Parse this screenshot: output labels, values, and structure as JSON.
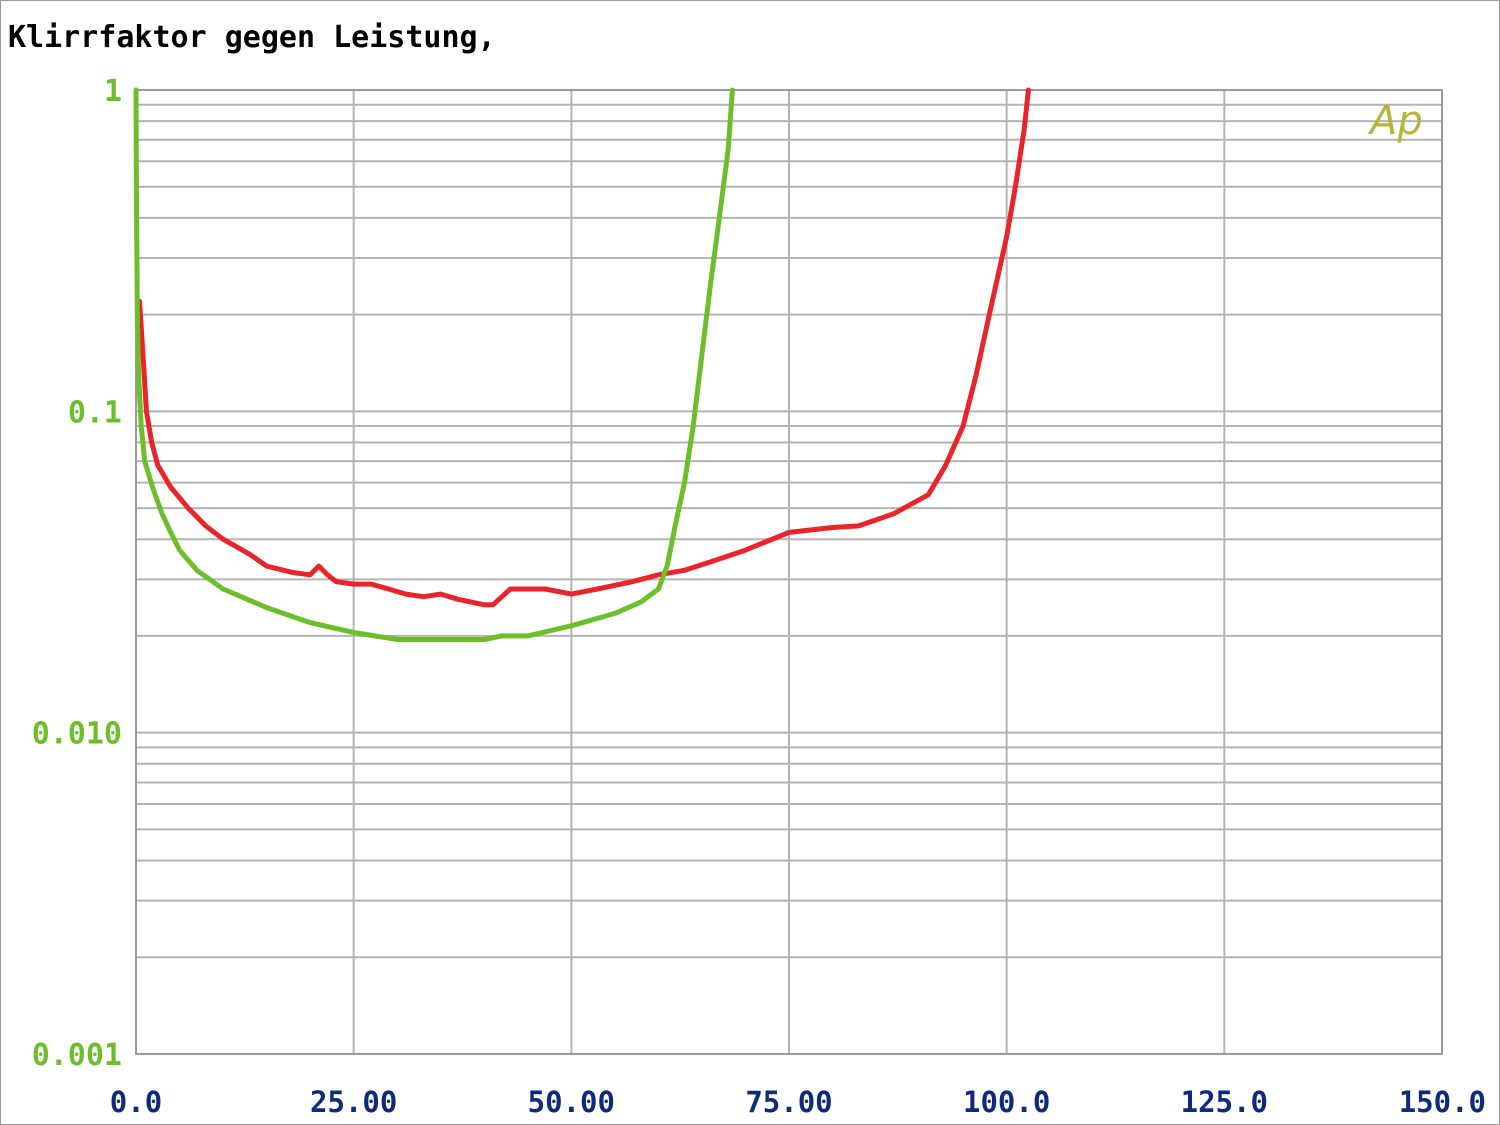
{
  "colors": {
    "background": "#ffffff",
    "grid": "#b4b4b4",
    "plot_border": "#9a9a9a",
    "tick_y": "#6cbf2a",
    "tick_x": "#0e2a7a",
    "logo": "#b8b63a"
  },
  "chart_data": {
    "type": "line",
    "title": "Klirrfaktor gegen Leistung,",
    "xlabel": "",
    "ylabel": "",
    "xlim": [
      0,
      150
    ],
    "ylim": [
      0.001,
      1
    ],
    "yscale": "log",
    "grid": true,
    "x_ticks": [
      "0.0",
      "25.00",
      "50.00",
      "75.00",
      "100.0",
      "125.0",
      "150.0"
    ],
    "x_tick_values": [
      0,
      25,
      50,
      75,
      100,
      125,
      150
    ],
    "y_ticks": [
      "1",
      "0.1",
      "0.010",
      "0.001"
    ],
    "y_tick_values": [
      1,
      0.1,
      0.01,
      0.001
    ],
    "logo_text": "Ap",
    "series": [
      {
        "color": "#e8252a",
        "points": [
          [
            0.4,
            0.22
          ],
          [
            0.8,
            0.15
          ],
          [
            1.2,
            0.1
          ],
          [
            1.8,
            0.08
          ],
          [
            2.5,
            0.068
          ],
          [
            4,
            0.058
          ],
          [
            6,
            0.05
          ],
          [
            8,
            0.044
          ],
          [
            10,
            0.04
          ],
          [
            13,
            0.036
          ],
          [
            15,
            0.033
          ],
          [
            18,
            0.0315
          ],
          [
            20,
            0.031
          ],
          [
            21,
            0.033
          ],
          [
            22,
            0.031
          ],
          [
            23,
            0.0295
          ],
          [
            25,
            0.029
          ],
          [
            27,
            0.029
          ],
          [
            29,
            0.028
          ],
          [
            31,
            0.027
          ],
          [
            33,
            0.0265
          ],
          [
            35,
            0.027
          ],
          [
            37,
            0.026
          ],
          [
            40,
            0.025
          ],
          [
            41,
            0.025
          ],
          [
            43,
            0.028
          ],
          [
            45,
            0.028
          ],
          [
            47,
            0.028
          ],
          [
            50,
            0.027
          ],
          [
            53,
            0.028
          ],
          [
            57,
            0.0295
          ],
          [
            60,
            0.031
          ],
          [
            63,
            0.032
          ],
          [
            66,
            0.034
          ],
          [
            70,
            0.037
          ],
          [
            75,
            0.042
          ],
          [
            80,
            0.0435
          ],
          [
            83,
            0.044
          ],
          [
            87,
            0.048
          ],
          [
            91,
            0.055
          ],
          [
            93,
            0.068
          ],
          [
            95,
            0.09
          ],
          [
            96.5,
            0.13
          ],
          [
            98,
            0.2
          ],
          [
            100,
            0.35
          ],
          [
            101,
            0.5
          ],
          [
            102,
            0.75
          ],
          [
            102.5,
            1.0
          ]
        ]
      },
      {
        "color": "#6cbf2a",
        "points": [
          [
            0,
            1.0
          ],
          [
            0.05,
            0.5
          ],
          [
            0.15,
            0.2
          ],
          [
            0.3,
            0.13
          ],
          [
            0.6,
            0.09
          ],
          [
            1,
            0.07
          ],
          [
            2,
            0.057
          ],
          [
            3,
            0.048
          ],
          [
            4,
            0.042
          ],
          [
            5,
            0.037
          ],
          [
            7,
            0.032
          ],
          [
            10,
            0.028
          ],
          [
            15,
            0.0245
          ],
          [
            20,
            0.022
          ],
          [
            25,
            0.0205
          ],
          [
            30,
            0.0195
          ],
          [
            35,
            0.0195
          ],
          [
            40,
            0.0195
          ],
          [
            42,
            0.02
          ],
          [
            45,
            0.02
          ],
          [
            50,
            0.0215
          ],
          [
            55,
            0.0235
          ],
          [
            58,
            0.0255
          ],
          [
            60,
            0.028
          ],
          [
            61,
            0.033
          ],
          [
            62,
            0.045
          ],
          [
            63,
            0.06
          ],
          [
            64,
            0.09
          ],
          [
            65,
            0.15
          ],
          [
            66,
            0.25
          ],
          [
            67,
            0.4
          ],
          [
            68,
            0.65
          ],
          [
            68.5,
            1.0
          ]
        ]
      }
    ]
  }
}
